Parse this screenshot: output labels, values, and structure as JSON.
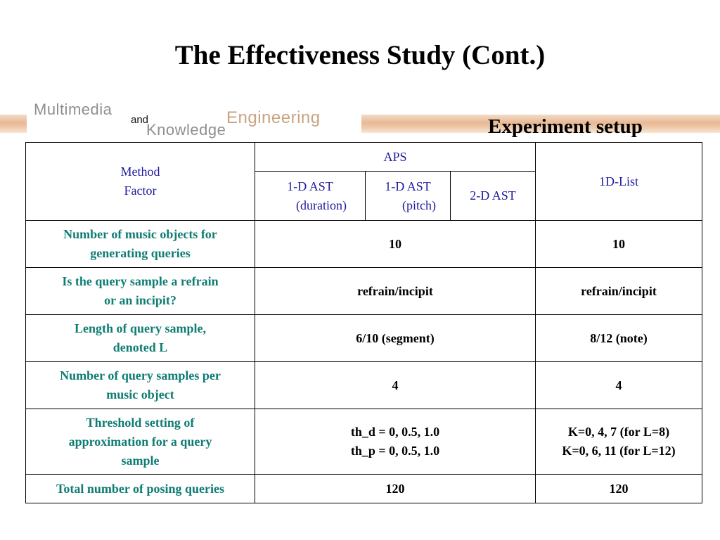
{
  "title": "The Effectiveness Study (Cont.)",
  "logo": {
    "word1": "Multimedia",
    "word2": "and",
    "word3": "Knowledge",
    "word4": "Engineering"
  },
  "section_heading": "Experiment setup",
  "table": {
    "header": {
      "method": "Method",
      "factor": "Factor",
      "aps": "APS",
      "ast_duration_line1": "1-D AST",
      "ast_duration_line2": "(duration)",
      "ast_pitch_line1": "1-D AST",
      "ast_pitch_line2": "(pitch)",
      "ast_2d": "2-D AST",
      "list_1d": "1D-List"
    },
    "rows": [
      {
        "label_line1": "Number of music objects for",
        "label_line2": "generating queries",
        "aps": "10",
        "list": "10"
      },
      {
        "label_line1": "Is the query sample a refrain",
        "label_line2": "or an incipit?",
        "aps": "refrain/incipit",
        "list": "refrain/incipit"
      },
      {
        "label_line1": "Length of query sample,",
        "label_line2": "denoted L",
        "aps": "6/10 (segment)",
        "list": "8/12 (note)"
      },
      {
        "label_line1": "Number of query samples per",
        "label_line2": "music  object",
        "aps": "4",
        "list": "4"
      },
      {
        "label_line1": "Threshold setting of",
        "label_line2": "approximation for a query",
        "label_line3": "sample",
        "aps_line1": "th_d = 0, 0.5, 1.0",
        "aps_line2": "th_p = 0, 0.5, 1.0",
        "list_line1": "K=0, 4, 7 (for L=8)",
        "list_line2": "K=0, 6, 11 (for L=12)"
      },
      {
        "label_line1": "Total number of posing queries",
        "aps": "120",
        "list": "120"
      }
    ]
  }
}
